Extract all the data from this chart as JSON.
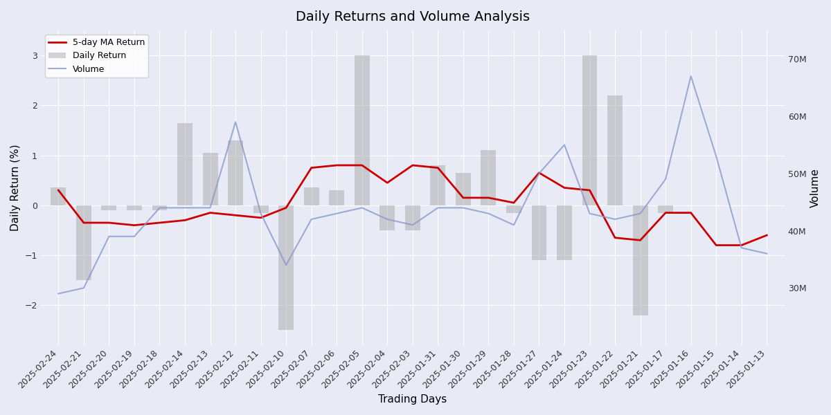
{
  "title": "Daily Returns and Volume Analysis",
  "xlabel": "Trading Days",
  "ylabel_left": "Daily Return (%)",
  "ylabel_right": "Volume",
  "background_color": "#e8eaf6",
  "dates": [
    "2025-02-24",
    "2025-02-21",
    "2025-02-20",
    "2025-02-19",
    "2025-02-18",
    "2025-02-14",
    "2025-02-13",
    "2025-02-12",
    "2025-02-11",
    "2025-02-10",
    "2025-02-07",
    "2025-02-06",
    "2025-02-05",
    "2025-02-04",
    "2025-02-03",
    "2025-01-31",
    "2025-01-30",
    "2025-01-29",
    "2025-01-28",
    "2025-01-27",
    "2025-01-24",
    "2025-01-23",
    "2025-01-22",
    "2025-01-21",
    "2025-01-17",
    "2025-01-16",
    "2025-01-15",
    "2025-01-14",
    "2025-01-13"
  ],
  "daily_returns": [
    0.35,
    -1.5,
    -0.1,
    -0.1,
    -0.1,
    1.65,
    1.05,
    1.3,
    -0.15,
    -2.5,
    0.35,
    0.3,
    3.0,
    -0.5,
    -0.5,
    0.8,
    0.65,
    1.1,
    -0.15,
    -1.1,
    -1.1,
    3.0,
    2.2,
    -2.2,
    -0.15,
    0.0,
    0.0,
    0.0,
    0.0
  ],
  "ma5_returns": [
    0.3,
    -0.35,
    -0.35,
    -0.4,
    -0.35,
    -0.3,
    -0.15,
    -0.2,
    -0.25,
    -0.05,
    0.75,
    0.8,
    0.8,
    0.45,
    0.8,
    0.75,
    0.15,
    0.15,
    0.05,
    0.65,
    0.35,
    0.3,
    -0.65,
    -0.7,
    -0.15,
    -0.15,
    -0.8,
    -0.8,
    -0.6
  ],
  "volumes": [
    29000000,
    30000000,
    39000000,
    39000000,
    44000000,
    44000000,
    44000000,
    59000000,
    43000000,
    34000000,
    42000000,
    43000000,
    44000000,
    42000000,
    41000000,
    44000000,
    44000000,
    43000000,
    41000000,
    50000000,
    55000000,
    43000000,
    42000000,
    43000000,
    49000000,
    67000000,
    53000000,
    37000000,
    36000000
  ],
  "bar_color": "#aaaaaa",
  "bar_alpha": 0.5,
  "ma_line_color": "#cc0000",
  "volume_line_color": "#8899cc",
  "volume_line_alpha": 0.8,
  "ylim_left": [
    -2.8,
    3.5
  ],
  "ylim_right": [
    20000000,
    75000000
  ],
  "yticks_right": [
    30000000,
    40000000,
    50000000,
    60000000,
    70000000
  ],
  "grid_color": "white",
  "title_fontsize": 14
}
